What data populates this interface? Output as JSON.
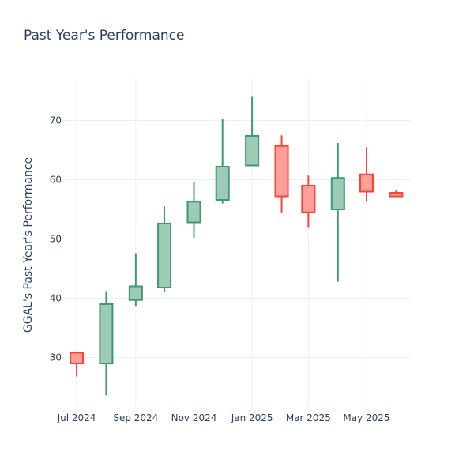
{
  "chart_data": {
    "type": "candlestick",
    "title": "Past Year's Performance",
    "xlabel": "",
    "ylabel": "GGAL's Past Year's Performance",
    "ylim": [
      21,
      77
    ],
    "x_ticks": [
      "Jul 2024",
      "Sep 2024",
      "Nov 2024",
      "Jan 2025",
      "Mar 2025",
      "May 2025"
    ],
    "y_ticks": [
      30,
      40,
      50,
      60,
      70
    ],
    "grid": true,
    "colors": {
      "up": "#3d9970",
      "up_fill": "#9ecbb5",
      "down": "#ff4136",
      "down_fill": "#ff9f9a"
    },
    "series": [
      {
        "date": "2024-07-01",
        "open": 30.8,
        "high": 30.9,
        "low": 26.8,
        "close": 29.0
      },
      {
        "date": "2024-08-01",
        "open": 29.0,
        "high": 41.2,
        "low": 23.6,
        "close": 39.0
      },
      {
        "date": "2024-09-01",
        "open": 39.7,
        "high": 47.6,
        "low": 38.7,
        "close": 42.0
      },
      {
        "date": "2024-10-01",
        "open": 41.8,
        "high": 55.5,
        "low": 41.1,
        "close": 52.6
      },
      {
        "date": "2024-11-01",
        "open": 52.8,
        "high": 59.7,
        "low": 50.2,
        "close": 56.3
      },
      {
        "date": "2024-12-01",
        "open": 56.6,
        "high": 70.3,
        "low": 56.0,
        "close": 62.2
      },
      {
        "date": "2025-01-01",
        "open": 62.4,
        "high": 74.0,
        "low": 62.4,
        "close": 67.4
      },
      {
        "date": "2025-02-01",
        "open": 65.7,
        "high": 67.5,
        "low": 54.5,
        "close": 57.2
      },
      {
        "date": "2025-03-01",
        "open": 59.0,
        "high": 60.7,
        "low": 52.0,
        "close": 54.5
      },
      {
        "date": "2025-04-01",
        "open": 55.0,
        "high": 66.2,
        "low": 42.8,
        "close": 60.3
      },
      {
        "date": "2025-05-01",
        "open": 60.9,
        "high": 65.5,
        "low": 56.3,
        "close": 58.0
      },
      {
        "date": "2025-06-01",
        "open": 57.8,
        "high": 58.3,
        "low": 57.1,
        "close": 57.2
      }
    ]
  }
}
